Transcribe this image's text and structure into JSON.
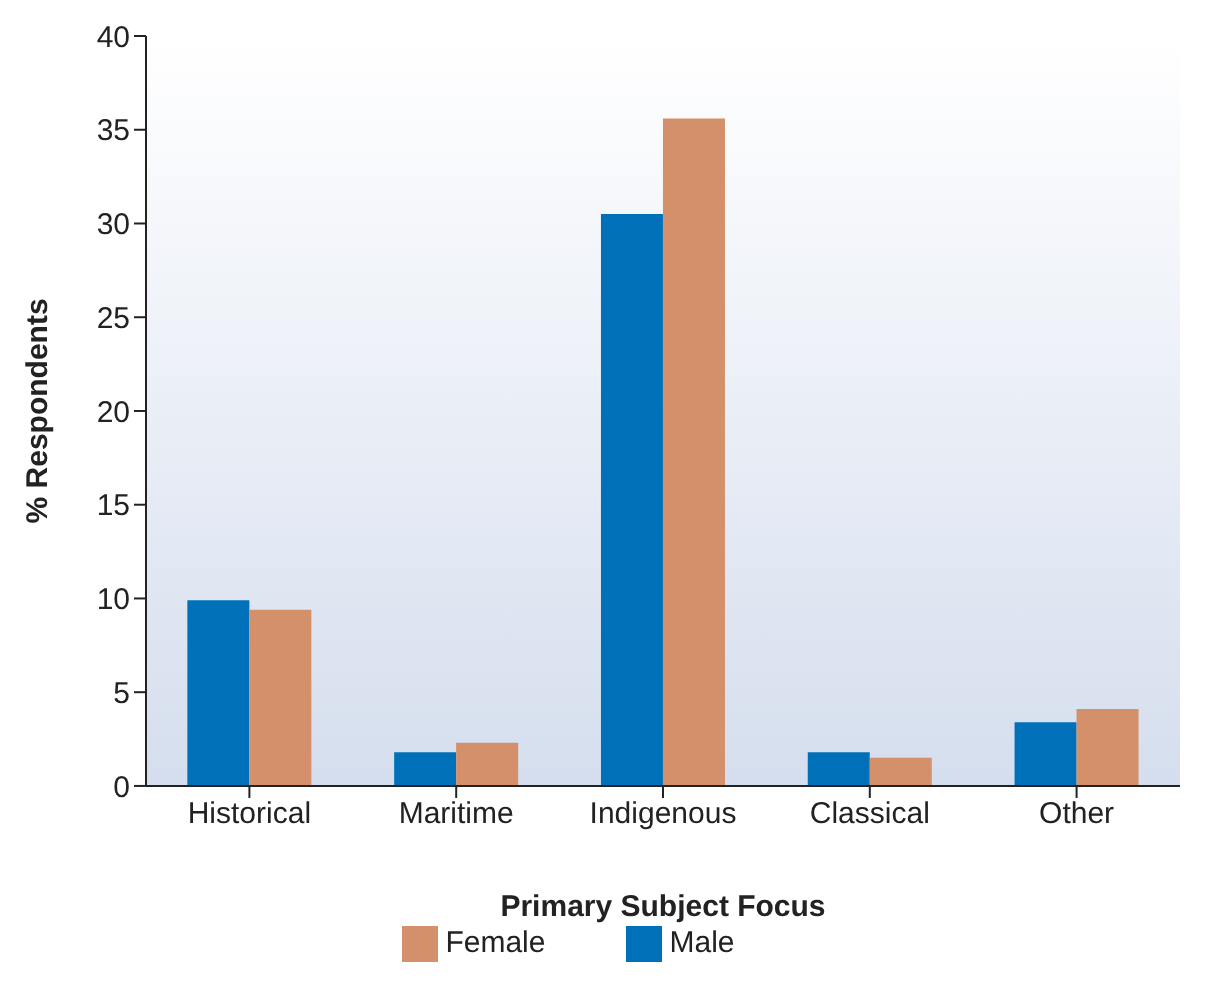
{
  "chart_data": {
    "type": "bar",
    "xlabel": "Primary Subject Focus",
    "ylabel": "% Respondents",
    "categories": [
      "Historical",
      "Maritime",
      "Indigenous",
      "Classical",
      "Other"
    ],
    "series": [
      {
        "name": "Male",
        "color": "#0070b8",
        "values": [
          9.9,
          1.8,
          30.5,
          1.8,
          3.4
        ]
      },
      {
        "name": "Female",
        "color": "#d4906a",
        "values": [
          9.4,
          2.3,
          35.6,
          1.5,
          4.1
        ]
      }
    ],
    "ylim": [
      0,
      40
    ],
    "yticks": [
      0,
      5,
      10,
      15,
      20,
      25,
      30,
      35,
      40
    ],
    "grid": false,
    "legend": "bottom"
  }
}
